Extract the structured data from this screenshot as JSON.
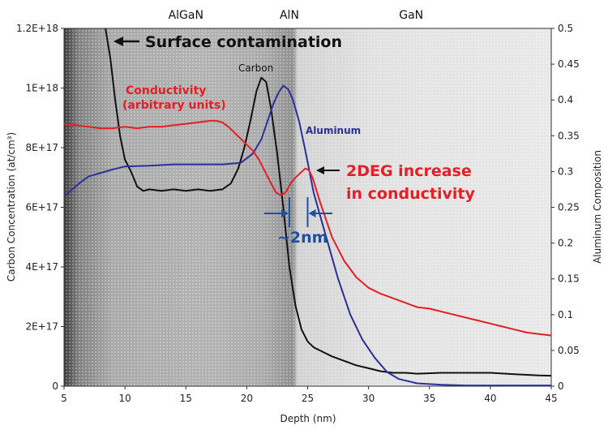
{
  "chart_data": {
    "type": "line",
    "xlabel": "Depth (nm)",
    "ylabel_left": "Carbon Concentration (at/cm³)",
    "ylabel_right": "Aluminum Composition",
    "xlim": [
      5,
      45
    ],
    "ylim_left": [
      0,
      1.2e+18
    ],
    "ylim_right": [
      0,
      0.5
    ],
    "x_ticks": [
      "5",
      "10",
      "15",
      "20",
      "25",
      "30",
      "35",
      "40",
      "45"
    ],
    "y_left_ticks": [
      "0",
      "2E+17",
      "4E+17",
      "6E+17",
      "8E+17",
      "1E+18",
      "1.2E+18"
    ],
    "y_right_ticks": [
      "0",
      "0.05",
      "0.1",
      "0.15",
      "0.2",
      "0.25",
      "0.3",
      "0.35",
      "0.4",
      "0.45",
      "0.5"
    ],
    "regions": [
      "AlGaN",
      "AlN",
      "GaN"
    ],
    "region_x": [
      15,
      23.5,
      33.5
    ],
    "region_boundaries": [
      20.5,
      23.5
    ],
    "colors": {
      "carbon": "#111111",
      "aluminum": "#2b2f9a",
      "conductivity": "#e61e25",
      "annotation_blue": "#1f4fa0"
    },
    "series": [
      {
        "name": "Carbon",
        "axis": "left",
        "x": [
          8.4,
          8.8,
          9.2,
          9.6,
          10.0,
          10.5,
          11.0,
          11.5,
          12.0,
          13.0,
          14.0,
          15.0,
          16.0,
          17.0,
          18.0,
          18.7,
          19.3,
          19.8,
          20.3,
          20.8,
          21.2,
          21.6,
          22.0,
          22.5,
          23.0,
          23.5,
          24.0,
          24.5,
          25.0,
          25.5,
          26.0,
          26.5,
          27.0,
          28.0,
          29.0,
          30.0,
          31.0,
          32.0,
          33.0,
          34.0,
          36.0,
          38.0,
          40.0,
          42.0,
          44.0,
          45.0
        ],
        "y": [
          1.2e+18,
          1.1e+18,
          9.6e+17,
          8.4e+17,
          7.6e+17,
          7.2e+17,
          6.7e+17,
          6.55e+17,
          6.6e+17,
          6.55e+17,
          6.6e+17,
          6.55e+17,
          6.6e+17,
          6.55e+17,
          6.6e+17,
          6.8e+17,
          7.3e+17,
          8e+17,
          8.9e+17,
          9.9e+17,
          1.035e+18,
          1.02e+18,
          9.3e+17,
          7.8e+17,
          6e+17,
          4e+17,
          2.7e+17,
          1.9e+17,
          1.5e+17,
          1.3e+17,
          1.2e+17,
          1.1e+17,
          1e+17,
          8.5e+16,
          7e+16,
          6e+16,
          5e+16,
          4.5e+16,
          4.5e+16,
          4.2e+16,
          4.5e+16,
          4.5e+16,
          4.5e+16,
          4e+16,
          3.6e+16,
          3.5e+16
        ]
      },
      {
        "name": "Aluminum",
        "axis": "right",
        "x": [
          5.0,
          6.0,
          7.0,
          8.0,
          9.0,
          10.0,
          12.0,
          14.0,
          16.0,
          18.0,
          19.5,
          20.5,
          21.2,
          21.7,
          22.2,
          22.6,
          23.0,
          23.4,
          23.8,
          24.3,
          24.8,
          25.5,
          26.5,
          27.5,
          28.5,
          29.5,
          30.5,
          31.5,
          32.5,
          34.0,
          36.0,
          38.0,
          40.0,
          42.0,
          45.0
        ],
        "y": [
          0.265,
          0.28,
          0.293,
          0.298,
          0.303,
          0.307,
          0.308,
          0.31,
          0.31,
          0.31,
          0.312,
          0.325,
          0.345,
          0.37,
          0.395,
          0.41,
          0.42,
          0.415,
          0.4,
          0.37,
          0.33,
          0.27,
          0.21,
          0.15,
          0.1,
          0.065,
          0.04,
          0.02,
          0.01,
          0.004,
          0.002,
          0.001,
          0.001,
          0.001,
          0.001
        ]
      },
      {
        "name": "Conductivity (arbitrary units)",
        "axis": "left",
        "x": [
          5.0,
          6.0,
          7.0,
          8.0,
          9.0,
          10.0,
          11.0,
          12.0,
          13.0,
          14.0,
          15.0,
          16.0,
          17.0,
          17.5,
          18.0,
          18.5,
          19.0,
          19.5,
          20.0,
          20.5,
          21.0,
          21.5,
          22.0,
          22.4,
          22.8,
          23.2,
          23.6,
          24.0,
          24.4,
          24.8,
          25.1,
          25.4,
          25.7,
          26.0,
          26.5,
          27.0,
          28.0,
          29.0,
          30.0,
          31.0,
          32.0,
          33.0,
          34.0,
          35.0,
          36.0,
          37.0,
          38.0,
          39.0,
          40.0,
          41.0,
          42.0,
          43.0,
          44.0,
          45.0
        ],
        "y": [
          8.8e+17,
          8.75e+17,
          8.7e+17,
          8.65e+17,
          8.65e+17,
          8.7e+17,
          8.65e+17,
          8.7e+17,
          8.7e+17,
          8.75e+17,
          8.8e+17,
          8.85e+17,
          8.9e+17,
          8.9e+17,
          8.85e+17,
          8.7e+17,
          8.5e+17,
          8.3e+17,
          8.1e+17,
          7.9e+17,
          7.6e+17,
          7.2e+17,
          6.8e+17,
          6.5e+17,
          6.4e+17,
          6.5e+17,
          6.8e+17,
          7e+17,
          7.15e+17,
          7.3e+17,
          7.25e+17,
          7e+17,
          6.6e+17,
          6.2e+17,
          5.6e+17,
          5e+17,
          4.2e+17,
          3.65e+17,
          3.3e+17,
          3.1e+17,
          2.95e+17,
          2.8e+17,
          2.65e+17,
          2.6e+17,
          2.5e+17,
          2.4e+17,
          2.3e+17,
          2.2e+17,
          2.1e+17,
          2e+17,
          1.9e+17,
          1.8e+17,
          1.75e+17,
          1.7e+17
        ]
      }
    ],
    "annotations": {
      "surface_contamination": "Surface contamination",
      "carbon_label": "Carbon",
      "aluminum_label": "Aluminum",
      "conductivity_line1": "Conductivity",
      "conductivity_line2": "(arbitrary units)",
      "twodeg_line1": "2DEG increase",
      "twodeg_line2": "in conductivity",
      "width_label": "~2nm"
    }
  }
}
